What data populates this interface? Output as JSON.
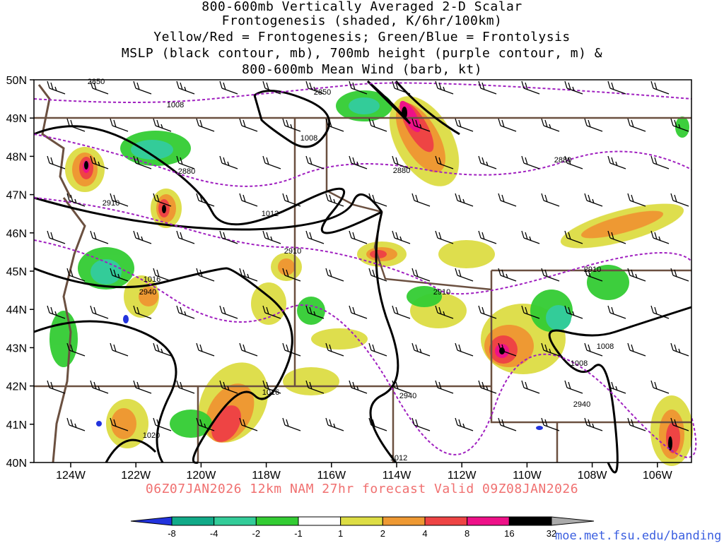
{
  "titles": [
    "800-600mb Vertically Averaged 2-D Scalar",
    "Frontogenesis (shaded, K/6hr/100km)",
    "Yellow/Red = Frontogenesis;  Green/Blue = Frontolysis",
    "MSLP (black contour, mb), 700mb height (purple contour, m) &",
    "800-600mb Mean Wind (barb, kt)"
  ],
  "footer": "06Z07JAN2026 12km NAM 27hr forecast Valid 09Z08JAN2026",
  "credit": "moe.met.fsu.edu/banding",
  "lat_labels": [
    "50N",
    "49N",
    "48N",
    "47N",
    "46N",
    "45N",
    "44N",
    "43N",
    "42N",
    "41N",
    "40N"
  ],
  "lon_labels": [
    "124W",
    "122W",
    "120W",
    "118W",
    "116W",
    "114W",
    "112W",
    "110W",
    "108W",
    "106W"
  ],
  "legend": {
    "labels": [
      "-8",
      "-4",
      "-2",
      "-1",
      "1",
      "2",
      "4",
      "8",
      "16",
      "32"
    ],
    "colors": [
      "#2233dd",
      "#11aa88",
      "#33cc99",
      "#33cc33",
      "#ffffff",
      "#dddd44",
      "#ee9933",
      "#ee4444",
      "#ee1188",
      "#000000",
      "#aaaaaa"
    ]
  },
  "mslp_labels": [
    "1008",
    "1008",
    "1012",
    "1016",
    "1008",
    "1008",
    "1016",
    "1020",
    "1012"
  ],
  "height_labels": [
    "2850",
    "2850",
    "2880",
    "2880",
    "2880",
    "2910",
    "2910",
    "2910",
    "2910",
    "2940",
    "2940",
    "2940"
  ],
  "colors": {
    "mslp": "#000000",
    "height": "#a020c0",
    "border": "#6b5040",
    "frontogenesis": "#ee4444",
    "frontolysis": "#33cc33"
  },
  "icons": [
    "wind-barb-icon"
  ]
}
